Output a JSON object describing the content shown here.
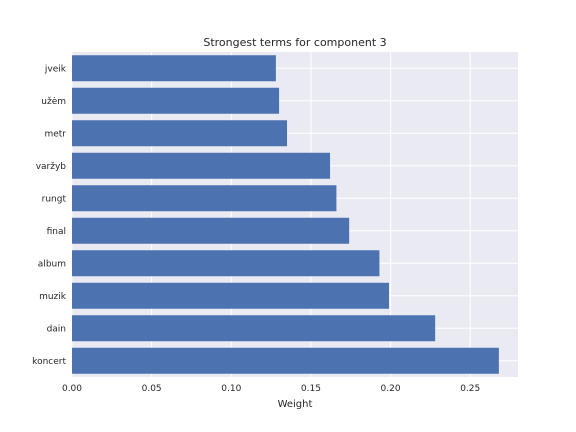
{
  "chart_data": {
    "type": "bar",
    "orientation": "horizontal",
    "title": "Strongest terms for component 3",
    "xlabel": "Weight",
    "ylabel": "",
    "xlim": [
      0,
      0.28
    ],
    "xticks": [
      "0.00",
      "0.05",
      "0.10",
      "0.15",
      "0.20",
      "0.25"
    ],
    "xtick_values": [
      0,
      0.05,
      0.1,
      0.15,
      0.2,
      0.25
    ],
    "grid": true,
    "categories": [
      "jveik",
      "užėm",
      "metr",
      "varžyb",
      "rungt",
      "final",
      "album",
      "muzik",
      "dain",
      "koncert"
    ],
    "values": [
      0.128,
      0.13,
      0.135,
      0.162,
      0.166,
      0.174,
      0.193,
      0.199,
      0.228,
      0.268
    ],
    "bar_color": "#4c72b0",
    "background_color": "#eaeaf2"
  }
}
